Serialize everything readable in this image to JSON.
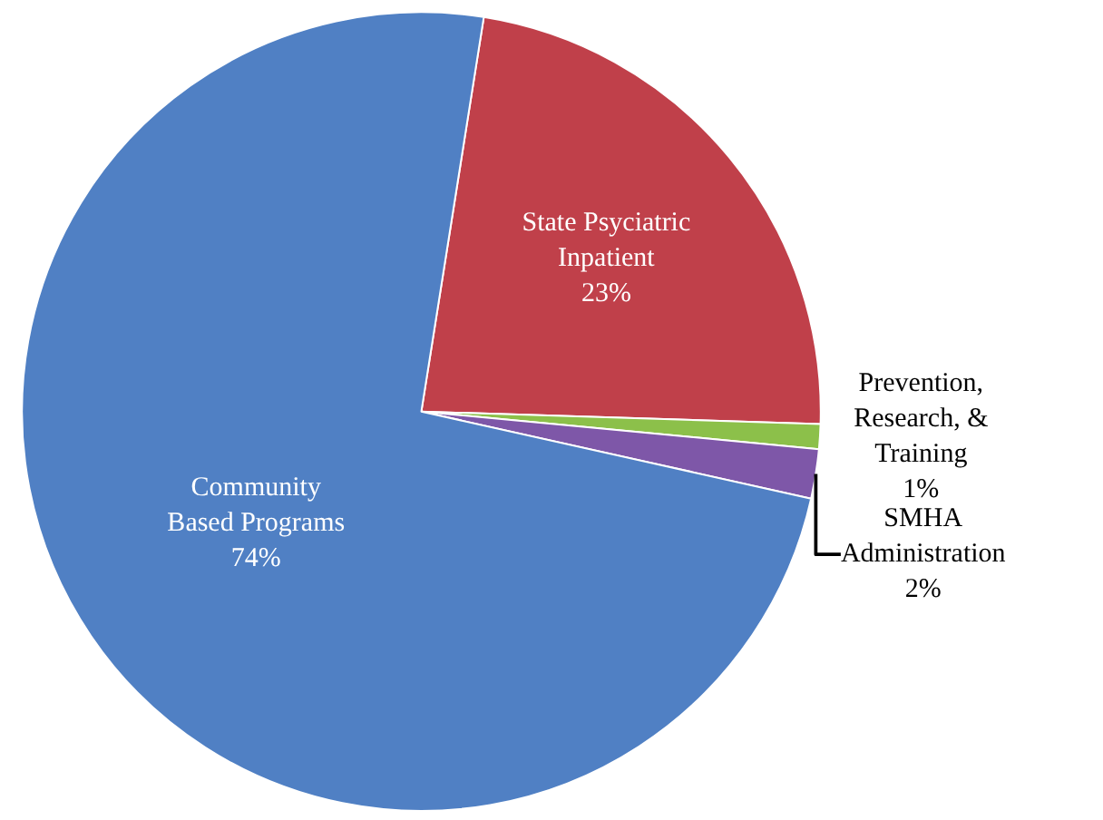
{
  "chart_data": {
    "type": "pie",
    "categories": [
      "State Psyciatric\nInpatient",
      "Prevention,\nResearch, &\nTraining",
      "SMHA\nAdministration",
      "Community\nBased Programs"
    ],
    "values": [
      23,
      1,
      2,
      74
    ],
    "value_labels": [
      "23%",
      "1%",
      "2%",
      "74%"
    ],
    "colors": [
      "#c0404a",
      "#8cc04a",
      "#7e57a8",
      "#5080c4"
    ],
    "legend": false
  }
}
